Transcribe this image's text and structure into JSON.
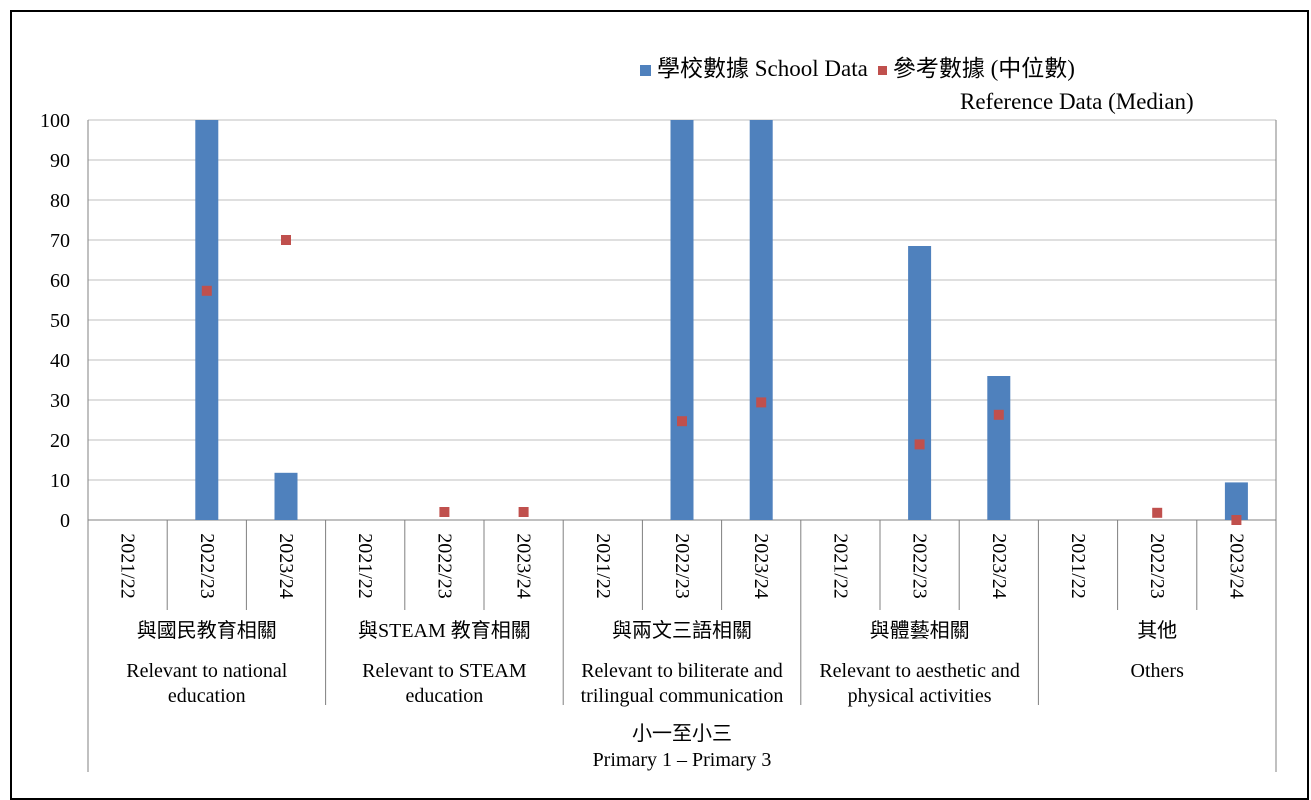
{
  "colors": {
    "school": "#4F81BD",
    "reference": "#C0504D",
    "grid": "#BFBFBF"
  },
  "legend": {
    "school": "學校數據 School Data",
    "reference_line1": "參考數據 (中位數)",
    "reference_line2": "Reference Data (Median)"
  },
  "chart_data": {
    "type": "bar",
    "ylim": [
      0,
      100
    ],
    "yticks": [
      "0",
      "10",
      "20",
      "30",
      "40",
      "50",
      "60",
      "70",
      "80",
      "90",
      "100"
    ],
    "grid": true,
    "legend_position": "top-right",
    "level_label_zh": "小一至小三",
    "level_label_en": "Primary 1 – Primary 3",
    "groups": [
      {
        "label_zh": "與國民教育相關",
        "label_en": [
          "Relevant to national",
          "education"
        ]
      },
      {
        "label_zh": "與STEAM 教育相關",
        "label_en": [
          "Relevant to STEAM",
          "education"
        ]
      },
      {
        "label_zh": "與兩文三語相關",
        "label_en": [
          "Relevant to biliterate and",
          "trilingual communication"
        ]
      },
      {
        "label_zh": "與體藝相關",
        "label_en": [
          "Relevant to aesthetic and",
          "physical activities"
        ]
      },
      {
        "label_zh": "其他",
        "label_en": [
          "Others"
        ]
      }
    ],
    "categories": [
      "2021/22",
      "2022/23",
      "2023/24",
      "2021/22",
      "2022/23",
      "2023/24",
      "2021/22",
      "2022/23",
      "2023/24",
      "2021/22",
      "2022/23",
      "2023/24",
      "2021/22",
      "2022/23",
      "2023/24"
    ],
    "series": [
      {
        "name": "學校數據 School Data",
        "kind": "bar",
        "values": [
          null,
          100,
          11.8,
          null,
          null,
          null,
          null,
          100,
          100,
          null,
          68.5,
          36,
          null,
          null,
          9.4
        ]
      },
      {
        "name": "參考數據 (中位數) Reference Data (Median)",
        "kind": "marker",
        "values": [
          null,
          57.3,
          70,
          null,
          2,
          2,
          null,
          24.7,
          29.4,
          null,
          18.9,
          26.3,
          null,
          1.8,
          0
        ]
      }
    ]
  }
}
